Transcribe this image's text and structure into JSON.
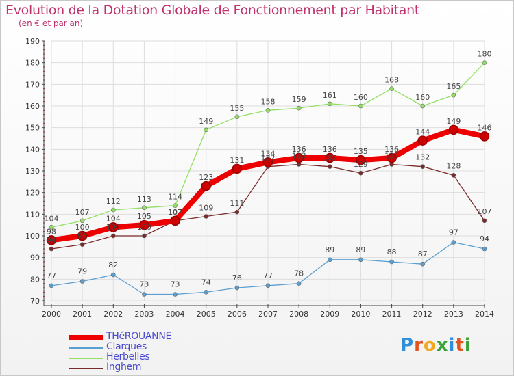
{
  "header": {
    "title": "Evolution de la Dotation Globale de Fonctionnement par Habitant",
    "subtitle": "(en € et par an)"
  },
  "logo": {
    "text": "Proxiti",
    "letter_colors": [
      "#2f8fd8",
      "#e0541f",
      "#f2a81c",
      "#3aa335",
      "#2f8fd8",
      "#e0541f",
      "#3aa335"
    ]
  },
  "chart_data": {
    "type": "line",
    "title": "Evolution de la Dotation Globale de Fonctionnement par Habitant",
    "subtitle": "(en € et par an)",
    "x": [
      "2000",
      "2001",
      "2002",
      "2003",
      "2004",
      "2005",
      "2006",
      "2007",
      "2008",
      "2009",
      "2010",
      "2011",
      "2012",
      "2013",
      "2014"
    ],
    "ylim": [
      70,
      190
    ],
    "yticks": [
      70,
      80,
      90,
      100,
      110,
      120,
      130,
      140,
      150,
      160,
      170,
      180,
      190
    ],
    "grid": true,
    "legend_position": "bottom-left",
    "series": [
      {
        "name": "THéROUANNE",
        "color": "#ee0000",
        "emphasis": true,
        "values": [
          98,
          100,
          104,
          105,
          107,
          123,
          131,
          134,
          136,
          136,
          135,
          136,
          144,
          149,
          146
        ]
      },
      {
        "name": "Clarques",
        "color": "#5b9fd1",
        "values": [
          77,
          79,
          82,
          73,
          73,
          74,
          76,
          77,
          78,
          89,
          89,
          88,
          87,
          97,
          94
        ]
      },
      {
        "name": "Herbelles",
        "color": "#92e063",
        "values": [
          104,
          107,
          112,
          113,
          114,
          149,
          155,
          158,
          159,
          161,
          160,
          168,
          160,
          165,
          180
        ]
      },
      {
        "name": "Inghem",
        "color": "#7a2a2a",
        "values": [
          94,
          96,
          100,
          100,
          107,
          109,
          111,
          132,
          133,
          132,
          129,
          133,
          132,
          128,
          107
        ]
      }
    ]
  }
}
